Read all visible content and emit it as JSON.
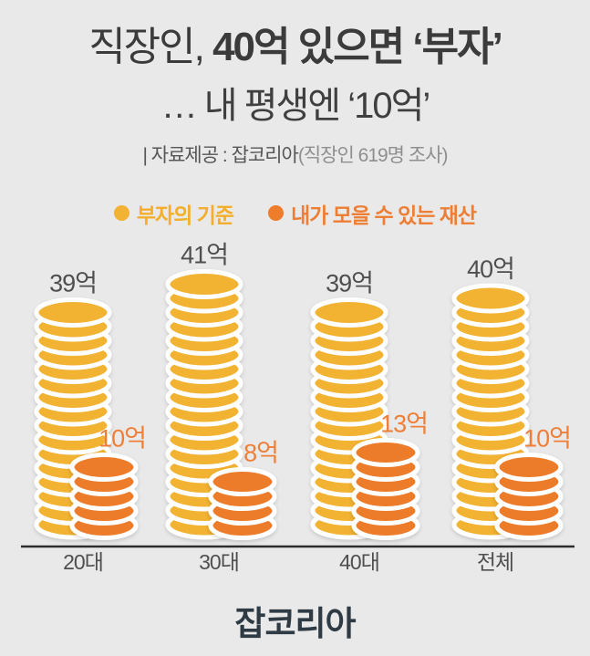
{
  "header": {
    "title_light": "직장인, ",
    "title_bold": "40억 있으면 ‘부자’",
    "title_line2": "… 내 평생엔 ‘10억’",
    "source_main": "| 자료제공 : 잡코리아",
    "source_paren": "(직장인 619명 조사)"
  },
  "chart_data": {
    "type": "bar",
    "title": "직장인, 40억 있으면 ‘부자’ … 내 평생엔 ‘10억’",
    "categories": [
      "20대",
      "30대",
      "40대",
      "전체"
    ],
    "unit": "억",
    "legend_position": "top",
    "grid": false,
    "series": [
      {
        "name": "부자의 기준",
        "color": "#F2B233",
        "label_color": "#4F4F4F",
        "values": [
          39,
          41,
          39,
          40
        ],
        "labels": [
          "39억",
          "41억",
          "39억",
          "40억"
        ],
        "coins": [
          16,
          18,
          16,
          17
        ]
      },
      {
        "name": "내가 모을 수 있는 재산",
        "color": "#ED7C2B",
        "label_color": "#EE7F38",
        "values": [
          10,
          8,
          13,
          10
        ],
        "labels": [
          "10억",
          "8억",
          "13억",
          "10억"
        ],
        "coins": [
          5,
          4,
          6,
          5
        ]
      }
    ]
  },
  "legend": {
    "rich_color": "#F3AF2C",
    "mine_color": "#EE7E33"
  },
  "footer": {
    "logo": "잡코리아"
  }
}
